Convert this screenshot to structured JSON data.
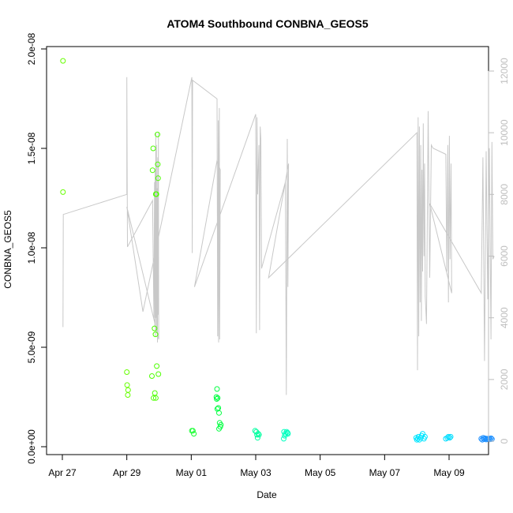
{
  "chart_data": {
    "type": "scatter",
    "title": "ATOM4 Southbound CONBNA_GEOS5",
    "xlabel": "Date",
    "ylabel": "CONBNA_GEOS5",
    "x_tick_labels": [
      "Apr 27",
      "Apr 29",
      "May 01",
      "May 03",
      "May 05",
      "May 07",
      "May 09"
    ],
    "x_tick_days": [
      0,
      2,
      4,
      6,
      8,
      10,
      12
    ],
    "xlim_days": [
      -0.5,
      13.1
    ],
    "y_tick_labels": [
      "0.0e+00",
      "5.0e-09",
      "1.0e-08",
      "1.5e-08",
      "2.0e-08"
    ],
    "y_tick_values": [
      0,
      5e-09,
      1e-08,
      1.5e-08,
      2e-08
    ],
    "ylim": [
      0,
      2e-08
    ],
    "right_axis_tick_labels": [
      "0",
      "2000",
      "4000",
      "6000",
      "8000",
      "10000",
      "12000"
    ],
    "right_axis_tick_values": [
      0,
      2000,
      4000,
      6000,
      8000,
      10000,
      12000
    ],
    "right_axis_range": [
      0,
      12000
    ],
    "right_axis_color": "#bebebe",
    "points": [
      {
        "x": 0.02,
        "y": 1.94e-08,
        "color": "#66ff00"
      },
      {
        "x": 0.02,
        "y": 1.28e-08,
        "color": "#66ff00"
      },
      {
        "x": 2.0,
        "y": 3.75e-09,
        "color": "#66ff00"
      },
      {
        "x": 2.01,
        "y": 3.1e-09,
        "color": "#66ff00"
      },
      {
        "x": 2.04,
        "y": 2.85e-09,
        "color": "#66ff00"
      },
      {
        "x": 2.03,
        "y": 2.6e-09,
        "color": "#66ff00"
      },
      {
        "x": 2.78,
        "y": 3.55e-09,
        "color": "#4dff00"
      },
      {
        "x": 2.83,
        "y": 2.45e-09,
        "color": "#4dff00"
      },
      {
        "x": 2.87,
        "y": 2.7e-09,
        "color": "#4dff00"
      },
      {
        "x": 2.9,
        "y": 2.45e-09,
        "color": "#4dff00"
      },
      {
        "x": 2.82,
        "y": 1.5e-08,
        "color": "#4dff00"
      },
      {
        "x": 2.8,
        "y": 1.39e-08,
        "color": "#4dff00"
      },
      {
        "x": 2.86,
        "y": 5.95e-09,
        "color": "#4dff00"
      },
      {
        "x": 2.89,
        "y": 5.65e-09,
        "color": "#4dff00"
      },
      {
        "x": 2.9,
        "y": 1.27e-08,
        "color": "#4dff00"
      },
      {
        "x": 2.92,
        "y": 1.27e-08,
        "color": "#4dff00"
      },
      {
        "x": 2.95,
        "y": 1.57e-08,
        "color": "#4dff00"
      },
      {
        "x": 2.96,
        "y": 1.42e-08,
        "color": "#4dff00"
      },
      {
        "x": 2.97,
        "y": 1.35e-08,
        "color": "#4dff00"
      },
      {
        "x": 2.93,
        "y": 4.05e-09,
        "color": "#4dff00"
      },
      {
        "x": 2.98,
        "y": 3.65e-09,
        "color": "#4dff00"
      },
      {
        "x": 4.02,
        "y": 8e-10,
        "color": "#1aff33"
      },
      {
        "x": 4.05,
        "y": 8e-10,
        "color": "#1aff33"
      },
      {
        "x": 4.08,
        "y": 6.5e-10,
        "color": "#1aff33"
      },
      {
        "x": 4.8,
        "y": 2.9e-09,
        "color": "#00ff40"
      },
      {
        "x": 4.78,
        "y": 2.5e-09,
        "color": "#00ff40"
      },
      {
        "x": 4.82,
        "y": 2.45e-09,
        "color": "#00ff40"
      },
      {
        "x": 4.79,
        "y": 2.4e-09,
        "color": "#00ff40"
      },
      {
        "x": 4.81,
        "y": 1.9e-09,
        "color": "#00ff40"
      },
      {
        "x": 4.84,
        "y": 1.95e-09,
        "color": "#00ff40"
      },
      {
        "x": 4.86,
        "y": 1.7e-09,
        "color": "#00ff40"
      },
      {
        "x": 4.88,
        "y": 1.2e-09,
        "color": "#00ff40"
      },
      {
        "x": 4.9,
        "y": 1e-09,
        "color": "#00ff40"
      },
      {
        "x": 4.92,
        "y": 1.1e-09,
        "color": "#00ff40"
      },
      {
        "x": 4.86,
        "y": 9e-10,
        "color": "#00ff40"
      },
      {
        "x": 5.98,
        "y": 8e-10,
        "color": "#00ffa0"
      },
      {
        "x": 6.02,
        "y": 7.5e-10,
        "color": "#00ffa0"
      },
      {
        "x": 6.04,
        "y": 6e-10,
        "color": "#00ffa0"
      },
      {
        "x": 6.06,
        "y": 4.5e-10,
        "color": "#00ffa0"
      },
      {
        "x": 6.08,
        "y": 6.5e-10,
        "color": "#00ffa0"
      },
      {
        "x": 6.1,
        "y": 6e-10,
        "color": "#00ffa0"
      },
      {
        "x": 6.88,
        "y": 7.5e-10,
        "color": "#00ffc0"
      },
      {
        "x": 6.92,
        "y": 6.5e-10,
        "color": "#00ffc0"
      },
      {
        "x": 6.96,
        "y": 7.5e-10,
        "color": "#00ffc0"
      },
      {
        "x": 6.9,
        "y": 5.5e-10,
        "color": "#00ffc0"
      },
      {
        "x": 6.99,
        "y": 7e-10,
        "color": "#00ffc0"
      },
      {
        "x": 6.87,
        "y": 4e-10,
        "color": "#00ffc0"
      },
      {
        "x": 7.0,
        "y": 6.5e-10,
        "color": "#00ffc0"
      },
      {
        "x": 10.98,
        "y": 4.5e-10,
        "color": "#00e5ff"
      },
      {
        "x": 11.0,
        "y": 3.5e-10,
        "color": "#00e5ff"
      },
      {
        "x": 11.03,
        "y": 4e-10,
        "color": "#00e5ff"
      },
      {
        "x": 11.05,
        "y": 5e-10,
        "color": "#00e5ff"
      },
      {
        "x": 11.08,
        "y": 3.5e-10,
        "color": "#00e5ff"
      },
      {
        "x": 11.12,
        "y": 4.5e-10,
        "color": "#00e5ff"
      },
      {
        "x": 11.15,
        "y": 5.5e-10,
        "color": "#00e5ff"
      },
      {
        "x": 11.18,
        "y": 6.5e-10,
        "color": "#00e5ff"
      },
      {
        "x": 11.22,
        "y": 4e-10,
        "color": "#00e5ff"
      },
      {
        "x": 11.25,
        "y": 5e-10,
        "color": "#00e5ff"
      },
      {
        "x": 11.95,
        "y": 4.5e-10,
        "color": "#00ddff"
      },
      {
        "x": 11.98,
        "y": 5e-10,
        "color": "#00ddff"
      },
      {
        "x": 12.02,
        "y": 4.5e-10,
        "color": "#00ddff"
      },
      {
        "x": 12.05,
        "y": 5e-10,
        "color": "#00ddff"
      },
      {
        "x": 11.9,
        "y": 4e-10,
        "color": "#00ddff"
      },
      {
        "x": 13.0,
        "y": 4e-10,
        "color": "#1e90ff"
      },
      {
        "x": 13.03,
        "y": 3.5e-10,
        "color": "#1e90ff"
      },
      {
        "x": 13.06,
        "y": 4.5e-10,
        "color": "#1e90ff"
      },
      {
        "x": 13.09,
        "y": 3.8e-10,
        "color": "#1e90ff"
      },
      {
        "x": 13.12,
        "y": 4.2e-10,
        "color": "#1e90ff"
      },
      {
        "x": 13.15,
        "y": 3.6e-10,
        "color": "#1e90ff"
      },
      {
        "x": 13.18,
        "y": 4e-10,
        "color": "#1e90ff"
      },
      {
        "x": 13.21,
        "y": 3.9e-10,
        "color": "#1e90ff"
      },
      {
        "x": 13.24,
        "y": 4.1e-10,
        "color": "#1e90ff"
      },
      {
        "x": 13.27,
        "y": 3.7e-10,
        "color": "#1e90ff"
      },
      {
        "x": 13.3,
        "y": 4.3e-10,
        "color": "#1e90ff"
      },
      {
        "x": 13.33,
        "y": 3.8e-10,
        "color": "#1e90ff"
      }
    ],
    "altitude_line": {
      "color": "#c8c8c8",
      "points": [
        [
          0.02,
          3700
        ],
        [
          0.03,
          7350
        ],
        [
          2.0,
          8000
        ],
        [
          2.0,
          11800
        ],
        [
          2.01,
          9000
        ],
        [
          2.02,
          6300
        ],
        [
          2.8,
          7800
        ],
        [
          2.84,
          4000
        ],
        [
          2.86,
          8400
        ],
        [
          2.87,
          3700
        ],
        [
          2.88,
          8800
        ],
        [
          2.89,
          3400
        ],
        [
          2.9,
          10000
        ],
        [
          2.91,
          4000
        ],
        [
          2.92,
          9600
        ],
        [
          2.93,
          3500
        ],
        [
          2.94,
          8200
        ],
        [
          2.95,
          3200
        ],
        [
          2.96,
          9200
        ],
        [
          2.97,
          4100
        ],
        [
          2.98,
          10000
        ],
        [
          2.99,
          3300
        ],
        [
          2.0,
          7600
        ],
        [
          2.5,
          4200
        ],
        [
          4.02,
          11800
        ],
        [
          4.03,
          6100
        ],
        [
          4.04,
          11700
        ],
        [
          4.8,
          11100
        ],
        [
          4.82,
          3400
        ],
        [
          4.84,
          10400
        ],
        [
          4.85,
          3200
        ],
        [
          4.87,
          10800
        ],
        [
          4.88,
          3300
        ],
        [
          4.9,
          8800
        ],
        [
          4.8,
          9100
        ],
        [
          4.1,
          5000
        ],
        [
          6.0,
          10600
        ],
        [
          6.02,
          3500
        ],
        [
          6.04,
          10500
        ],
        [
          6.06,
          8000
        ],
        [
          6.1,
          9600
        ],
        [
          6.12,
          3600
        ],
        [
          6.14,
          10200
        ],
        [
          6.16,
          9800
        ],
        [
          6.18,
          5600
        ],
        [
          6.92,
          8400
        ],
        [
          6.95,
          1500
        ],
        [
          6.98,
          9800
        ],
        [
          7.0,
          5000
        ],
        [
          7.02,
          9000
        ],
        [
          6.4,
          5300
        ],
        [
          11.0,
          10000
        ],
        [
          11.02,
          2300
        ],
        [
          11.04,
          10500
        ],
        [
          11.06,
          3400
        ],
        [
          11.08,
          10200
        ],
        [
          11.1,
          4500
        ],
        [
          11.12,
          9600
        ],
        [
          11.14,
          3900
        ],
        [
          11.16,
          8800
        ],
        [
          11.18,
          5500
        ],
        [
          11.2,
          10300
        ],
        [
          11.22,
          6000
        ],
        [
          11.24,
          9000
        ],
        [
          11.26,
          4700
        ],
        [
          11.3,
          3800
        ],
        [
          11.35,
          10700
        ],
        [
          11.4,
          5300
        ],
        [
          11.45,
          9600
        ],
        [
          11.5,
          9500
        ],
        [
          11.9,
          9300
        ],
        [
          11.93,
          5500
        ],
        [
          11.96,
          9600
        ],
        [
          11.98,
          4500
        ],
        [
          12.01,
          9900
        ],
        [
          12.03,
          5900
        ],
        [
          12.06,
          9000
        ],
        [
          12.08,
          4800
        ],
        [
          11.4,
          7700
        ],
        [
          13.0,
          4800
        ],
        [
          13.05,
          9200
        ],
        [
          13.1,
          2600
        ],
        [
          13.15,
          9400
        ],
        [
          13.2,
          4600
        ],
        [
          13.25,
          9500
        ],
        [
          13.3,
          3300
        ],
        [
          13.33,
          9700
        ],
        [
          13.36,
          5900
        ],
        [
          13.4,
          6000
        ]
      ]
    },
    "grid": false,
    "legend": "none"
  }
}
